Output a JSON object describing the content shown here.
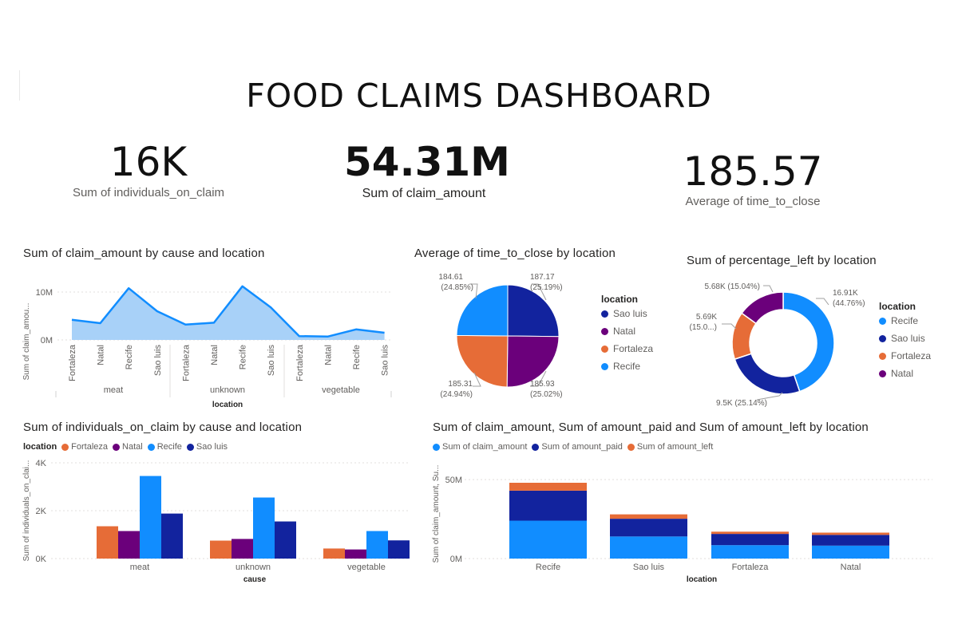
{
  "dashboard": {
    "title": "FOOD CLAIMS DASHBOARD"
  },
  "kpis": [
    {
      "value": "16K",
      "label": "Sum of individuals_on_claim"
    },
    {
      "value": "54.31M",
      "label": "Sum of claim_amount"
    },
    {
      "value": "185.57",
      "label": "Average of time_to_close"
    }
  ],
  "colors": {
    "fortaleza": "#e66c37",
    "natal": "#6b007b",
    "recife": "#118dff",
    "saoluis": "#12239e",
    "area_fill": "#a8d1f8",
    "area_line": "#118dff"
  },
  "area_chart": {
    "title": "Sum of claim_amount by cause and location",
    "ylabel": "Sum of claim_amou...",
    "xlabel": "location",
    "ytick_labels": [
      "10M",
      "0M"
    ],
    "locations": [
      "Fortaleza",
      "Natal",
      "Recife",
      "Sao luis",
      "Fortaleza",
      "Natal",
      "Recife",
      "Sao luis",
      "Fortaleza",
      "Natal",
      "Recife",
      "Sao luis"
    ],
    "causes": [
      "meat",
      "unknown",
      "vegetable"
    ]
  },
  "pie_chart": {
    "title": "Average of time_to_close by location",
    "legend_title": "location",
    "legend": [
      "Sao luis",
      "Natal",
      "Fortaleza",
      "Recife"
    ],
    "labels": [
      {
        "value": "187.17",
        "pct": "(25.19%)"
      },
      {
        "value": "185.93",
        "pct": "(25.02%)"
      },
      {
        "value": "185.31",
        "pct": "(24.94%)"
      },
      {
        "value": "184.61",
        "pct": "(24.85%)"
      }
    ]
  },
  "donut_chart": {
    "title": "Sum of percentage_left by location",
    "legend_title": "location",
    "legend": [
      "Recife",
      "Sao luis",
      "Fortaleza",
      "Natal"
    ],
    "labels": [
      {
        "value": "16.91K",
        "pct": "(44.76%)"
      },
      {
        "value": "9.5K (25.14%)",
        "pct": ""
      },
      {
        "value": "5.69K",
        "pct": "(15.0...)"
      },
      {
        "value": "5.68K (15.04%)",
        "pct": ""
      }
    ]
  },
  "bar_chart": {
    "title": "Sum of individuals_on_claim by cause and location",
    "legend_title": "location",
    "legend": [
      "Fortaleza",
      "Natal",
      "Recife",
      "Sao luis"
    ],
    "ylabel": "Sum of individuals_on_clai...",
    "xlabel": "cause",
    "ytick_labels": [
      "4K",
      "2K",
      "0K"
    ]
  },
  "stacked_chart": {
    "title": "Sum of claim_amount, Sum of amount_paid and Sum of amount_left by location",
    "legend": [
      "Sum of claim_amount",
      "Sum of amount_paid",
      "Sum of amount_left"
    ],
    "ylabel": "Sum of claim_amount, Su...",
    "xlabel": "location",
    "ytick_labels": [
      "50M",
      "0M"
    ]
  },
  "chart_data": [
    {
      "type": "area",
      "title": "Sum of claim_amount by cause and location",
      "categories": [
        "meat|Fortaleza",
        "meat|Natal",
        "meat|Recife",
        "meat|Sao luis",
        "unknown|Fortaleza",
        "unknown|Natal",
        "unknown|Recife",
        "unknown|Sao luis",
        "vegetable|Fortaleza",
        "vegetable|Natal",
        "vegetable|Recife",
        "vegetable|Sao luis"
      ],
      "values": [
        4.2,
        3.5,
        10.8,
        6.0,
        3.2,
        3.6,
        11.2,
        6.8,
        0.8,
        0.7,
        2.2,
        1.5
      ],
      "unit": "M",
      "ylim": [
        0,
        12
      ]
    },
    {
      "type": "pie",
      "title": "Average of time_to_close by location",
      "categories": [
        "Sao luis",
        "Natal",
        "Fortaleza",
        "Recife"
      ],
      "values": [
        187.17,
        185.93,
        185.31,
        184.61
      ]
    },
    {
      "type": "pie",
      "title": "Sum of percentage_left by location",
      "categories": [
        "Recife",
        "Sao luis",
        "Fortaleza",
        "Natal"
      ],
      "values": [
        16910,
        9500,
        5690,
        5680
      ]
    },
    {
      "type": "bar",
      "title": "Sum of individuals_on_claim by cause and location",
      "categories": [
        "meat",
        "unknown",
        "vegetable"
      ],
      "series": [
        {
          "name": "Fortaleza",
          "values": [
            1350,
            750,
            420
          ]
        },
        {
          "name": "Natal",
          "values": [
            1150,
            820,
            380
          ]
        },
        {
          "name": "Recife",
          "values": [
            3450,
            2550,
            1150
          ]
        },
        {
          "name": "Sao luis",
          "values": [
            1880,
            1550,
            760
          ]
        }
      ],
      "ylim": [
        0,
        4000
      ]
    },
    {
      "type": "bar",
      "title": "Sum of claim_amount, Sum of amount_paid and Sum of amount_left by location",
      "stacked": true,
      "categories": [
        "Recife",
        "Sao luis",
        "Fortaleza",
        "Natal"
      ],
      "series": [
        {
          "name": "Sum of claim_amount",
          "values": [
            24,
            14,
            8.5,
            8.2
          ]
        },
        {
          "name": "Sum of amount_paid",
          "values": [
            19,
            11.2,
            7.1,
            6.8
          ]
        },
        {
          "name": "Sum of amount_left",
          "values": [
            5,
            2.8,
            1.4,
            1.4
          ]
        }
      ],
      "unit": "M",
      "ylim": [
        0,
        50
      ]
    }
  ]
}
